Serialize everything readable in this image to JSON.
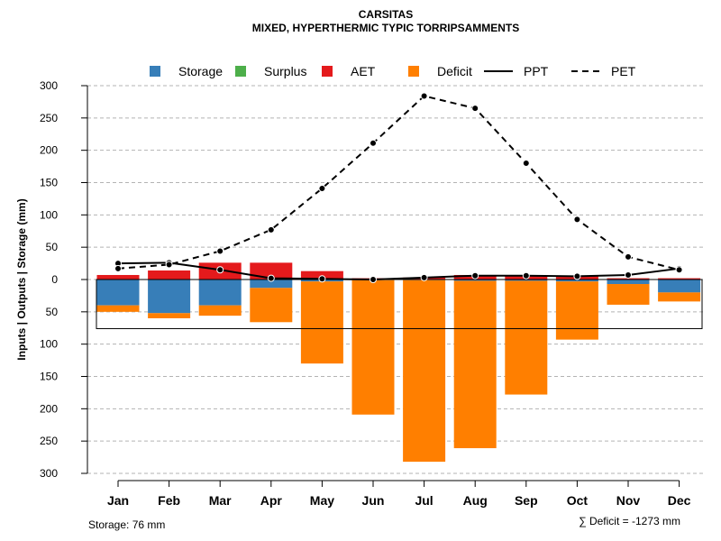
{
  "chart_data": {
    "type": "bar",
    "title": "CARSITAS",
    "subtitle": "MIXED, HYPERTHERMIC TYPIC TORRIPSAMMENTS",
    "ylabel": "Inputs | Outputs | Storage    (mm)",
    "categories": [
      "Jan",
      "Feb",
      "Mar",
      "Apr",
      "May",
      "Jun",
      "Jul",
      "Aug",
      "Sep",
      "Oct",
      "Nov",
      "Dec"
    ],
    "y_ticks": [
      300,
      250,
      200,
      150,
      100,
      50,
      0,
      50,
      100,
      150,
      200,
      250,
      300
    ],
    "ylim": [
      -300,
      300
    ],
    "grid": true,
    "legend": [
      {
        "name": "Storage",
        "kind": "box",
        "color": "#377EB8"
      },
      {
        "name": "Surplus",
        "kind": "box",
        "color": "#4DAF4A"
      },
      {
        "name": "AET",
        "kind": "box",
        "color": "#E41A1C"
      },
      {
        "name": "Deficit",
        "kind": "box",
        "color": "#FF7F00"
      },
      {
        "name": "PPT",
        "kind": "solid",
        "color": "#000000"
      },
      {
        "name": "PET",
        "kind": "dashed",
        "color": "#000000"
      }
    ],
    "bars_above": {
      "AET": [
        7,
        14,
        26,
        26,
        13,
        2,
        3,
        7,
        6,
        5,
        2,
        2
      ]
    },
    "bars_below": {
      "Storage": [
        40,
        52,
        40,
        13,
        3,
        1,
        1,
        2,
        2,
        3,
        7,
        20
      ],
      "Deficit": [
        10,
        8,
        16,
        53,
        127,
        208,
        281,
        259,
        176,
        90,
        32,
        14
      ]
    },
    "series": [
      {
        "name": "PPT",
        "style": "solid",
        "values": [
          25,
          26,
          15,
          2,
          1,
          0,
          3,
          6,
          6,
          5,
          7,
          17
        ]
      },
      {
        "name": "PET",
        "style": "dashed",
        "values": [
          17,
          23,
          44,
          77,
          141,
          211,
          284,
          265,
          180,
          93,
          35,
          15
        ]
      }
    ],
    "storage_capacity": 76,
    "footer_left": "Storage: 76 mm",
    "footer_right": "∑ Deficit = -1273 mm"
  }
}
